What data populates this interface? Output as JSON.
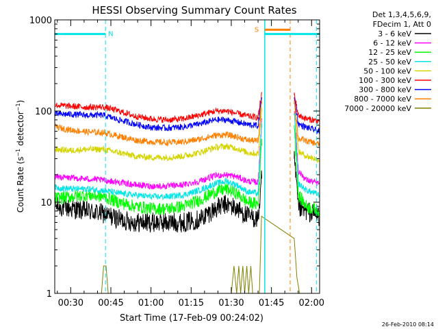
{
  "chart_data": {
    "type": "line",
    "title": "HESSI Observing Summary Count Rates",
    "xlabel": "Start Time (17-Feb-09 00:24:02)",
    "ylabel": "Count Rate (s⁻¹ detector⁻¹)",
    "ylabel_parts": {
      "a": "Count Rate (s",
      "sup1": "−1",
      "b": " detector",
      "sup2": "−1",
      "c": ")"
    },
    "y_scale": "log",
    "ylim": [
      1,
      1000
    ],
    "xlim_minutes": [
      24.03,
      123
    ],
    "x_tick_labels": [
      "00:30",
      "00:45",
      "01:00",
      "01:15",
      "01:30",
      "01:45",
      "02:00"
    ],
    "x_tick_minutes": [
      30,
      45,
      60,
      75,
      90,
      105,
      120
    ],
    "y_tick_labels": [
      "1",
      "10",
      "100",
      "1000"
    ],
    "y_tick_values": [
      1,
      10,
      100,
      1000
    ],
    "legend_header": [
      "Det 1,3,4,5,6,9,",
      "FDecim 1, Att 0"
    ],
    "legend_placement": "right",
    "timestamp": "26-Feb-2010 08:14",
    "flags": [
      {
        "label": "N",
        "start": 24.03,
        "end": 43,
        "level": 700,
        "color": "#00e5e5"
      },
      {
        "label": "S",
        "start": 102.5,
        "end": 112,
        "level": 780,
        "color": "#ff8000"
      },
      {
        "label": "",
        "start": 102.5,
        "end": 123,
        "level": 700,
        "color": "#00e5e5"
      }
    ],
    "vlines_dashed": [
      {
        "x": 43,
        "color": "#00e5e5"
      },
      {
        "x": 112,
        "color": "#ff8000"
      },
      {
        "x": 121.8,
        "color": "#00e5e5"
      }
    ],
    "vlines_solid": [
      {
        "x": 102.5,
        "color": "#00e5e5"
      }
    ],
    "gap": {
      "start": 101.3,
      "end": 113.5
    },
    "series": [
      {
        "name": "3 - 6 keV",
        "color": "#000000",
        "x": [
          24.03,
          30,
          36,
          42,
          48,
          54,
          60,
          66,
          72,
          78,
          84,
          88,
          92,
          96,
          100,
          101.3,
          113.5,
          115,
          118,
          123
        ],
        "y": [
          9,
          8.5,
          8,
          7.5,
          6.5,
          6,
          6,
          6,
          6,
          6.5,
          8.5,
          9.5,
          8.5,
          7,
          6.5,
          18,
          30,
          8.5,
          8,
          7
        ]
      },
      {
        "name": "6 - 12 keV",
        "color": "#ff00ff",
        "x": [
          24.03,
          30,
          36,
          42,
          48,
          54,
          60,
          66,
          72,
          78,
          84,
          88,
          92,
          96,
          100,
          101.3,
          113.5,
          115,
          118,
          123
        ],
        "y": [
          19,
          18.5,
          18,
          17.5,
          16.5,
          15.5,
          15,
          15,
          15.5,
          17,
          19.5,
          20,
          19,
          17,
          16.5,
          80,
          100,
          22,
          17.5,
          16
        ]
      },
      {
        "name": "12 - 25 keV",
        "color": "#00ff00",
        "x": [
          24.03,
          30,
          36,
          42,
          48,
          54,
          60,
          66,
          72,
          78,
          84,
          88,
          92,
          96,
          100,
          101.3,
          113.5,
          115,
          118,
          123
        ],
        "y": [
          11,
          11.5,
          12,
          11.5,
          10,
          9,
          8.5,
          8.5,
          9,
          10.5,
          13,
          14,
          12.5,
          10,
          9.5,
          50,
          70,
          12,
          9,
          8
        ]
      },
      {
        "name": "25 - 50 keV",
        "color": "#00e5e5",
        "x": [
          24.03,
          30,
          36,
          42,
          48,
          54,
          60,
          66,
          72,
          78,
          84,
          88,
          92,
          96,
          100,
          101.3,
          113.5,
          115,
          118,
          123
        ],
        "y": [
          14.5,
          14,
          14,
          13.5,
          12.5,
          12,
          11.5,
          11.5,
          12,
          13.5,
          16,
          17,
          15.5,
          13,
          12.5,
          75,
          95,
          16,
          13.5,
          12
        ]
      },
      {
        "name": "50 - 100 keV",
        "color": "#d4d400",
        "x": [
          24.03,
          30,
          36,
          42,
          48,
          54,
          60,
          66,
          72,
          78,
          84,
          88,
          92,
          96,
          100,
          101.3,
          113.5,
          115,
          118,
          123
        ],
        "y": [
          38,
          37,
          38,
          38,
          35,
          32,
          31,
          31,
          32,
          35,
          40,
          41,
          39,
          35,
          34,
          110,
          130,
          36,
          32,
          29
        ]
      },
      {
        "name": "100 - 300 keV",
        "color": "#ff0000",
        "x": [
          24.03,
          30,
          36,
          42,
          48,
          54,
          60,
          66,
          72,
          78,
          84,
          88,
          92,
          96,
          100,
          101.3,
          113.5,
          115,
          118,
          123
        ],
        "y": [
          116,
          113,
          110,
          111,
          100,
          88,
          82,
          80,
          82,
          90,
          100,
          100,
          94,
          88,
          85,
          155,
          150,
          90,
          82,
          77
        ]
      },
      {
        "name": "300 - 800 keV",
        "color": "#0000ff",
        "x": [
          24.03,
          30,
          36,
          42,
          48,
          54,
          60,
          66,
          72,
          78,
          84,
          88,
          92,
          96,
          100,
          101.3,
          113.5,
          115,
          118,
          123
        ],
        "y": [
          93,
          92,
          90,
          90,
          80,
          72,
          66,
          65,
          67,
          72,
          80,
          80,
          76,
          71,
          69,
          140,
          140,
          72,
          66,
          60
        ]
      },
      {
        "name": "800 - 7000 keV",
        "color": "#ff8000",
        "x": [
          24.03,
          30,
          36,
          42,
          48,
          54,
          60,
          66,
          72,
          78,
          84,
          88,
          92,
          96,
          100,
          101.3,
          113.5,
          115,
          118,
          123
        ],
        "y": [
          67,
          62,
          59,
          58,
          53,
          48,
          46,
          45,
          46,
          49,
          54,
          55,
          52,
          48,
          47,
          130,
          130,
          50,
          47,
          43
        ]
      },
      {
        "name": "7000 - 20000 keV",
        "color": "#808000",
        "x": [
          24.03,
          41.5,
          42.3,
          43.2,
          44,
          60,
          90,
          91,
          92,
          92.8,
          93.5,
          94.3,
          95,
          95.8,
          96.5,
          97.3,
          98,
          100.5,
          101.3,
          113.5,
          114.5,
          115.5,
          123
        ],
        "y": [
          1,
          1,
          2,
          2,
          1,
          1,
          1,
          2,
          1,
          2,
          1,
          2,
          1,
          2,
          1,
          2,
          1,
          1,
          7,
          4,
          1.5,
          1,
          1
        ]
      }
    ]
  }
}
